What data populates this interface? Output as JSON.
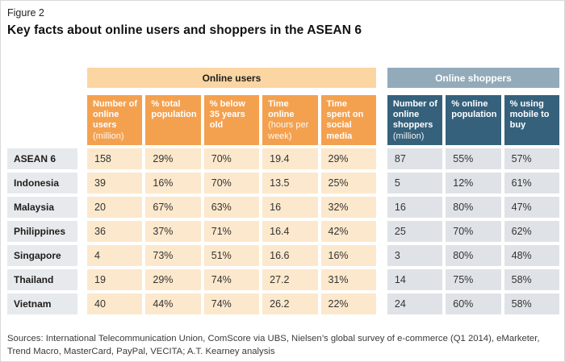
{
  "figure_label": "Figure 2",
  "title": "Key facts about online users and shoppers in the ASEAN 6",
  "colors": {
    "users_group_bg": "#fbd5a2",
    "users_header_bg": "#f4a14f",
    "users_cell_bg": "#fce8cc",
    "shoppers_group_bg": "#93aaba",
    "shoppers_header_bg": "#35617c",
    "shoppers_cell_bg": "#dfe3e7",
    "row_label_bg": "#e7eaec"
  },
  "chart_data": {
    "type": "table",
    "title": "Key facts about online users and shoppers in the ASEAN 6",
    "column_groups": [
      {
        "label": "Online users",
        "span": 5
      },
      {
        "label": "Online shoppers",
        "span": 3
      }
    ],
    "columns": [
      {
        "main": "Number of online users",
        "sub": "(million)",
        "group": "Online users"
      },
      {
        "main": "% total population",
        "sub": "",
        "group": "Online users"
      },
      {
        "main": "% below 35 years old",
        "sub": "",
        "group": "Online users"
      },
      {
        "main": "Time online",
        "sub": "(hours per week)",
        "group": "Online users"
      },
      {
        "main": "Time spent on social media",
        "sub": "",
        "group": "Online users"
      },
      {
        "main": "Number of online shoppers",
        "sub": "(million)",
        "group": "Online shoppers"
      },
      {
        "main": "% online population",
        "sub": "",
        "group": "Online shoppers"
      },
      {
        "main": "% using mobile to buy",
        "sub": "",
        "group": "Online shoppers"
      }
    ],
    "rows": [
      {
        "label": "ASEAN 6",
        "values": [
          "158",
          "29%",
          "70%",
          "19.4",
          "29%",
          "87",
          "55%",
          "57%"
        ]
      },
      {
        "label": "Indonesia",
        "values": [
          "39",
          "16%",
          "70%",
          "13.5",
          "25%",
          "5",
          "12%",
          "61%"
        ]
      },
      {
        "label": "Malaysia",
        "values": [
          "20",
          "67%",
          "63%",
          "16",
          "32%",
          "16",
          "80%",
          "47%"
        ]
      },
      {
        "label": "Philippines",
        "values": [
          "36",
          "37%",
          "71%",
          "16.4",
          "42%",
          "25",
          "70%",
          "62%"
        ]
      },
      {
        "label": "Singapore",
        "values": [
          "4",
          "73%",
          "51%",
          "16.6",
          "16%",
          "3",
          "80%",
          "48%"
        ]
      },
      {
        "label": "Thailand",
        "values": [
          "19",
          "29%",
          "74%",
          "27.2",
          "31%",
          "14",
          "75%",
          "58%"
        ]
      },
      {
        "label": "Vietnam",
        "values": [
          "40",
          "44%",
          "74%",
          "26.2",
          "22%",
          "24",
          "60%",
          "58%"
        ]
      }
    ]
  },
  "sources": "Sources: International Telecommunication Union, ComScore via UBS, Nielsen’s global survey of e-commerce (Q1 2014), eMarketer, Trend Macro, MasterCard, PayPal, VECITA; A.T. Kearney analysis"
}
